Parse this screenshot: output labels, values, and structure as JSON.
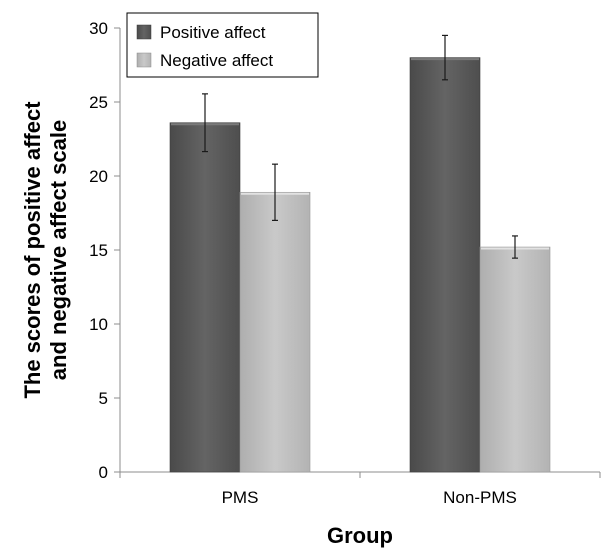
{
  "chart_data": {
    "type": "bar",
    "title": "",
    "xlabel": "Group",
    "ylabel": [
      "The scores of positive affect",
      "and negative affect scale"
    ],
    "categories": [
      "PMS",
      "Non-PMS"
    ],
    "series": [
      {
        "name": "Positive affect",
        "color": "#5b5b5b",
        "values": [
          23.6,
          28.0
        ],
        "error": [
          1.95,
          1.5
        ]
      },
      {
        "name": "Negative affect",
        "color": "#bdbdbd",
        "values": [
          18.9,
          15.2
        ],
        "error": [
          1.9,
          0.75
        ]
      }
    ],
    "ylim": [
      0,
      30
    ],
    "yticks": [
      0,
      5,
      10,
      15,
      20,
      25,
      30
    ],
    "grid": false,
    "legend": "top-left"
  }
}
